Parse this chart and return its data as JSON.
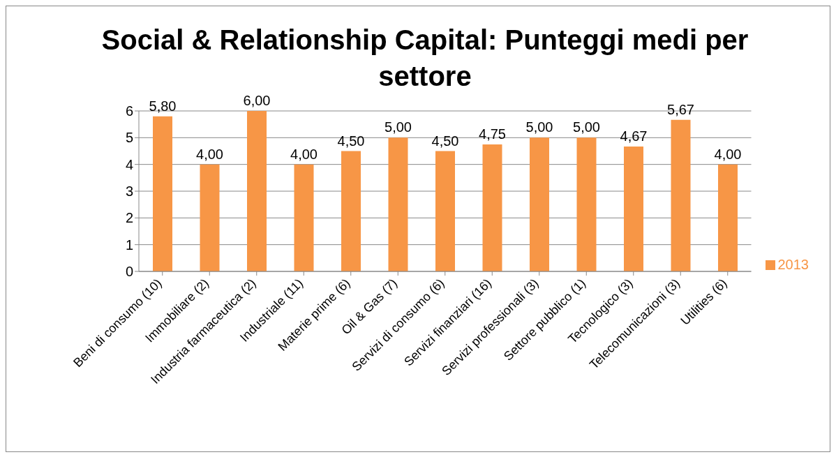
{
  "chart_data": {
    "type": "bar",
    "title": "Social & Relationship Capital: Punteggi medi per settore",
    "categories": [
      "Beni di consumo (10)",
      "Immobiliare (2)",
      "Industria farmaceutica (2)",
      "Industriale (11)",
      "Materie prime (6)",
      "Oil & Gas (7)",
      "Servizi di consumo (6)",
      "Servizi finanziari (16)",
      "Servizi professionali (3)",
      "Settore pubblico (1)",
      "Tecnologico (3)",
      "Telecomunicazioni (3)",
      "Utilities (6)"
    ],
    "series": [
      {
        "name": "2013",
        "color": "#f79646",
        "values": [
          5.8,
          4.0,
          6.0,
          4.0,
          4.5,
          5.0,
          4.5,
          4.75,
          5.0,
          5.0,
          4.67,
          5.67,
          4.0
        ],
        "value_labels": [
          "5,80",
          "4,00",
          "6,00",
          "4,00",
          "4,50",
          "5,00",
          "4,50",
          "4,75",
          "5,00",
          "5,00",
          "4,67",
          "5,67",
          "4,00"
        ]
      }
    ],
    "ylim": [
      0,
      6
    ],
    "yticks": [
      0,
      1,
      2,
      3,
      4,
      5,
      6
    ],
    "grid": "y",
    "legend": "right"
  }
}
